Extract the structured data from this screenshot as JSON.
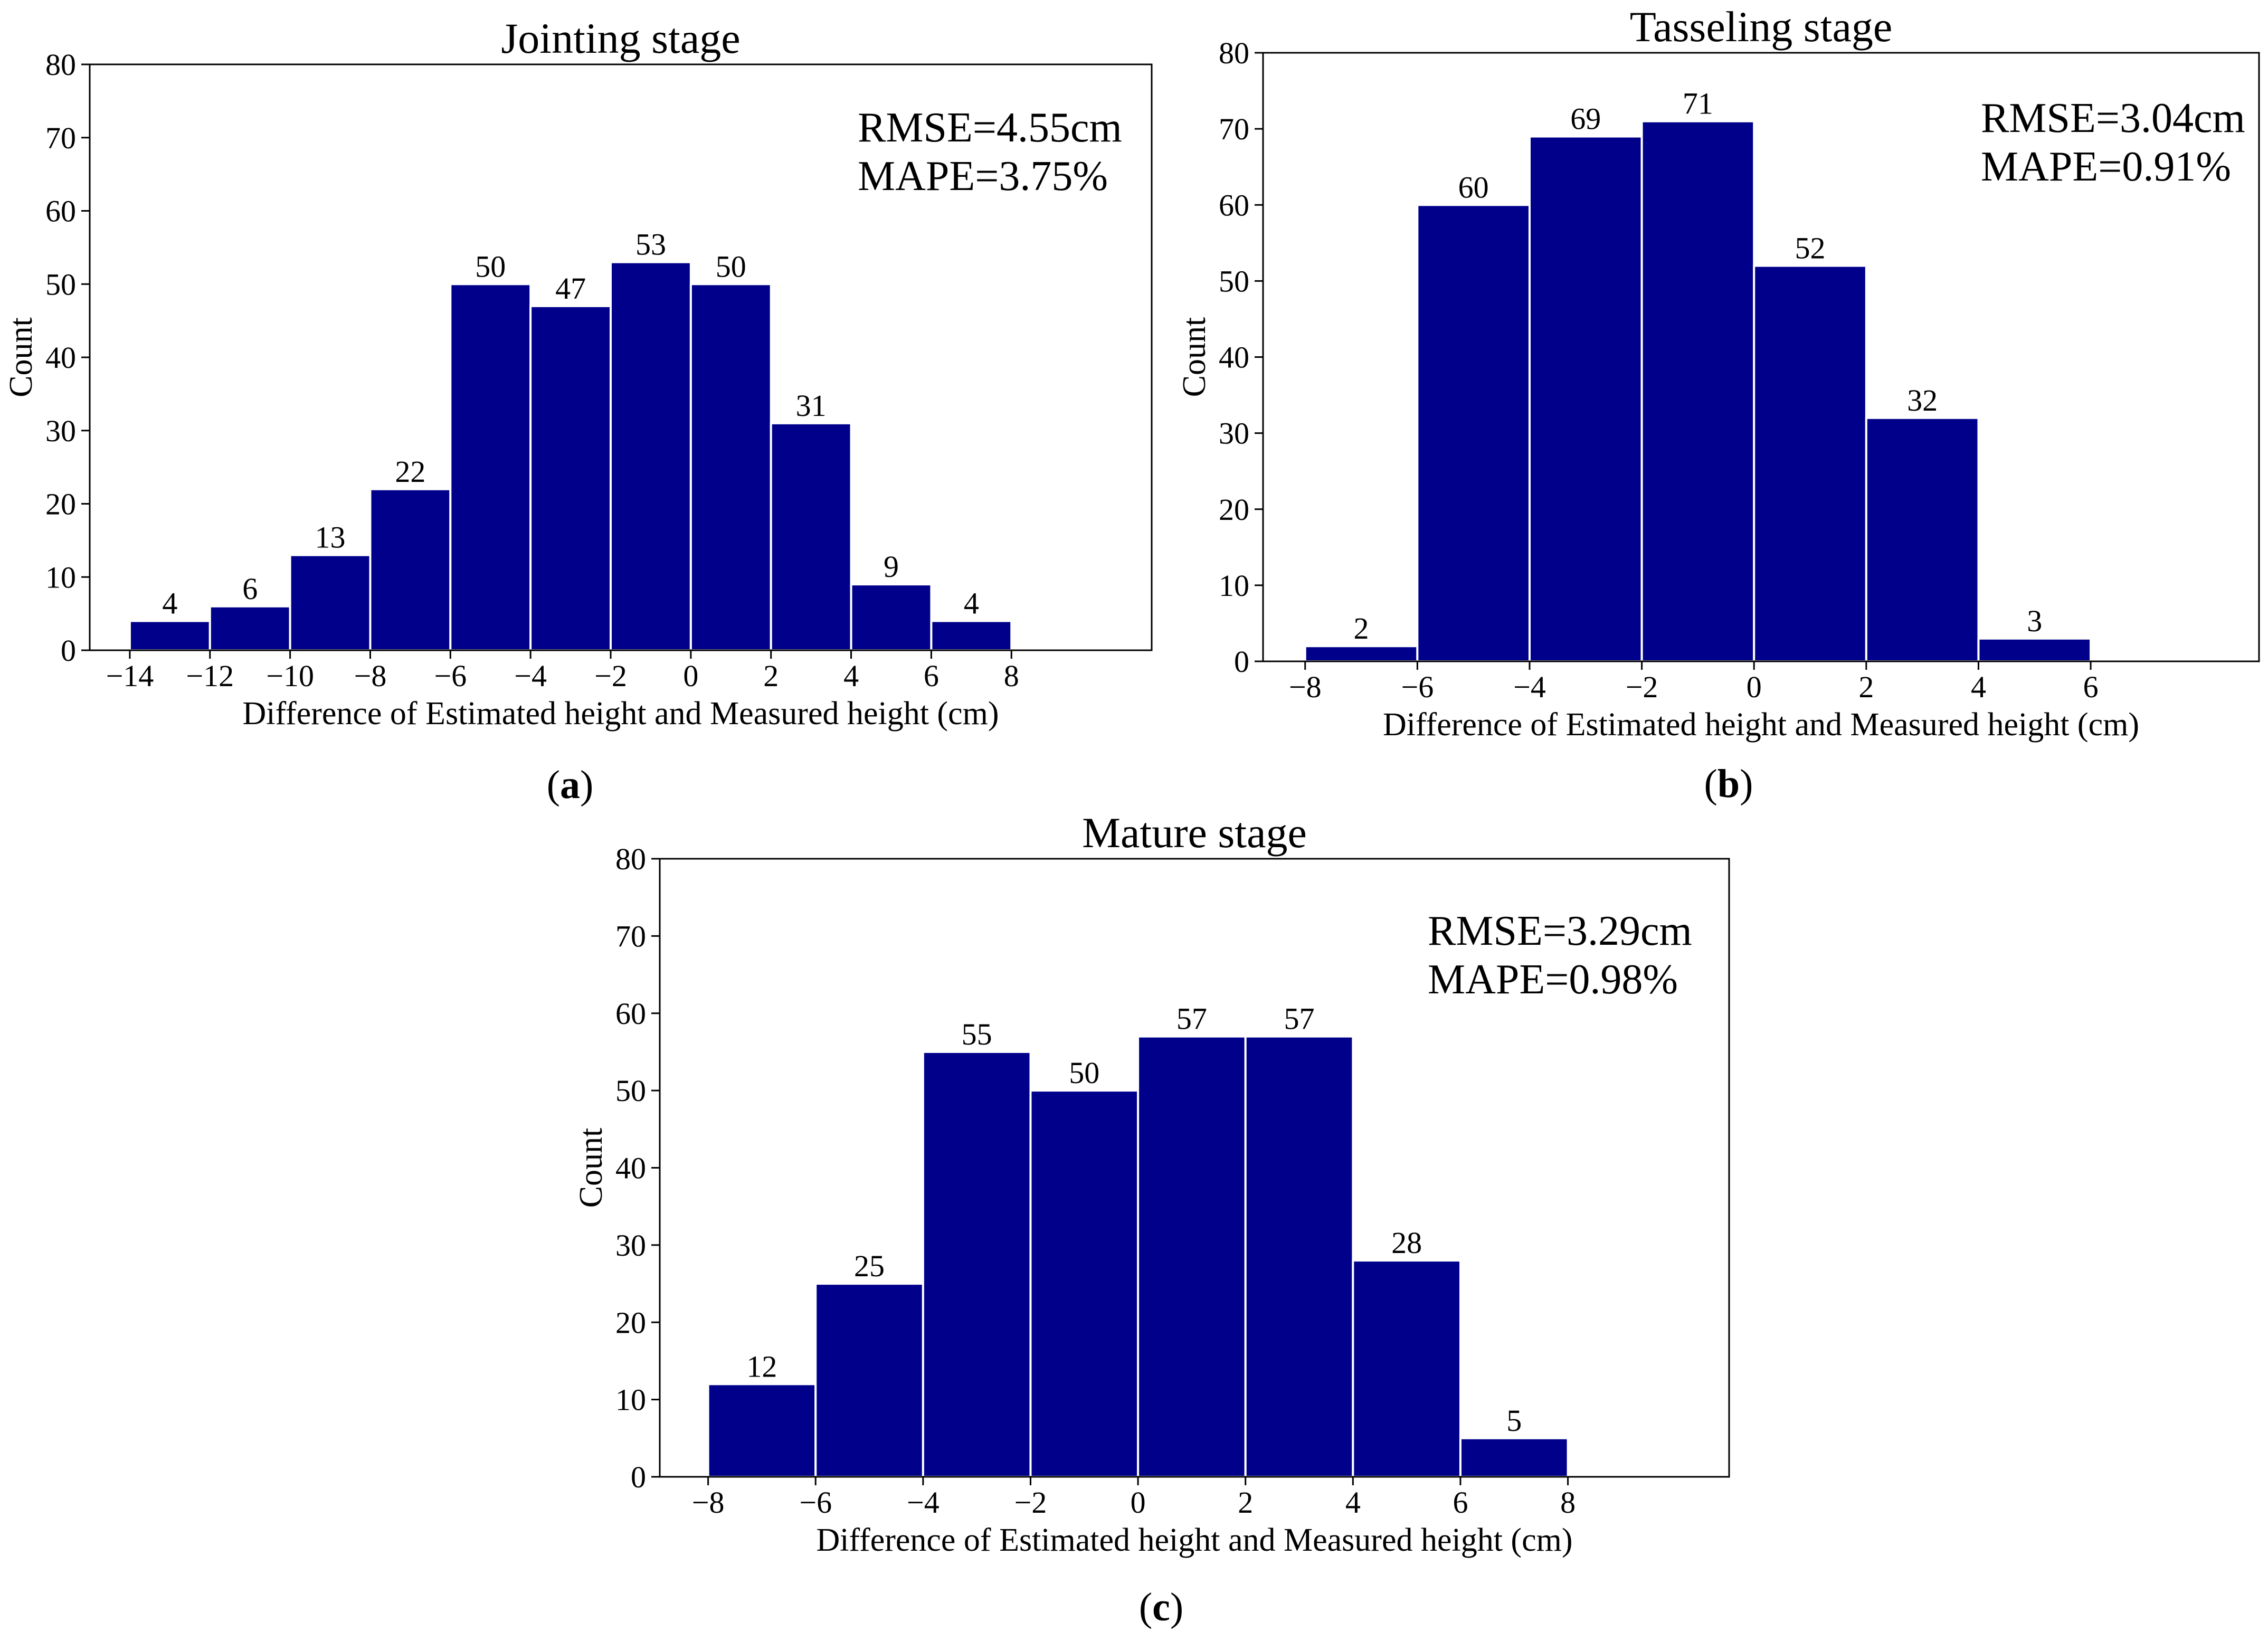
{
  "panels": [
    {
      "caption": "a",
      "stat_lines": [
        "RMSE=4.55cm",
        "MAPE=3.75%"
      ],
      "chart_data": {
        "type": "bar",
        "title": "Jointing stage",
        "xlabel": "Difference of Estimated height and Measured height (cm)",
        "ylabel": "Count",
        "bin_edges": [
          -14,
          -12,
          -10,
          -8,
          -6,
          -4,
          -2,
          0,
          2,
          4,
          6,
          8
        ],
        "values": [
          4,
          6,
          13,
          22,
          50,
          47,
          53,
          50,
          31,
          9,
          4
        ],
        "xlim": [
          -15,
          11.5
        ],
        "ylim": [
          0,
          80
        ],
        "xticks": [
          -14,
          -12,
          -10,
          -8,
          -6,
          -4,
          -2,
          0,
          2,
          4,
          6,
          8
        ],
        "xtick_labels": [
          "−14",
          "−12",
          "−10",
          "−8",
          "−6",
          "−4",
          "−2",
          "0",
          "2",
          "4",
          "6",
          "8"
        ],
        "yticks": [
          0,
          10,
          20,
          30,
          40,
          50,
          60,
          70,
          80
        ],
        "ytick_labels": [
          "0",
          "10",
          "20",
          "30",
          "40",
          "50",
          "60",
          "70",
          "80"
        ],
        "bar_color": "#00008b",
        "grid": false,
        "legend": "none"
      }
    },
    {
      "caption": "b",
      "stat_lines": [
        "RMSE=3.04cm",
        "MAPE=0.91%"
      ],
      "chart_data": {
        "type": "bar",
        "title": "Tasseling stage",
        "xlabel": "Difference of Estimated height and Measured height (cm)",
        "ylabel": "Count",
        "bin_edges": [
          -8,
          -6,
          -4,
          -2,
          0,
          2,
          4,
          6
        ],
        "values": [
          2,
          60,
          69,
          71,
          52,
          32,
          3
        ],
        "xlim": [
          -8.75,
          9.0
        ],
        "ylim": [
          0,
          80
        ],
        "xticks": [
          -8,
          -6,
          -4,
          -2,
          0,
          2,
          4,
          6
        ],
        "xtick_labels": [
          "−8",
          "−6",
          "−4",
          "−2",
          "0",
          "2",
          "4",
          "6"
        ],
        "yticks": [
          0,
          10,
          20,
          30,
          40,
          50,
          60,
          70,
          80
        ],
        "ytick_labels": [
          "0",
          "10",
          "20",
          "30",
          "40",
          "50",
          "60",
          "70",
          "80"
        ],
        "bar_color": "#00008b",
        "grid": false,
        "legend": "none"
      }
    },
    {
      "caption": "c",
      "stat_lines": [
        "RMSE=3.29cm",
        "MAPE=0.98%"
      ],
      "chart_data": {
        "type": "bar",
        "title": "Mature stage",
        "xlabel": "Difference of Estimated height and Measured height (cm)",
        "ylabel": "Count",
        "bin_edges": [
          -8,
          -6,
          -4,
          -2,
          0,
          2,
          4,
          6,
          8
        ],
        "values": [
          12,
          25,
          55,
          50,
          57,
          57,
          28,
          5
        ],
        "xlim": [
          -8.9,
          11.0
        ],
        "ylim": [
          0,
          80
        ],
        "xticks": [
          -8,
          -6,
          -4,
          -2,
          0,
          2,
          4,
          6,
          8
        ],
        "xtick_labels": [
          "−8",
          "−6",
          "−4",
          "−2",
          "0",
          "2",
          "4",
          "6",
          "8"
        ],
        "yticks": [
          0,
          10,
          20,
          30,
          40,
          50,
          60,
          70,
          80
        ],
        "ytick_labels": [
          "0",
          "10",
          "20",
          "30",
          "40",
          "50",
          "60",
          "70",
          "80"
        ],
        "bar_color": "#00008b",
        "grid": false,
        "legend": "none"
      }
    }
  ]
}
